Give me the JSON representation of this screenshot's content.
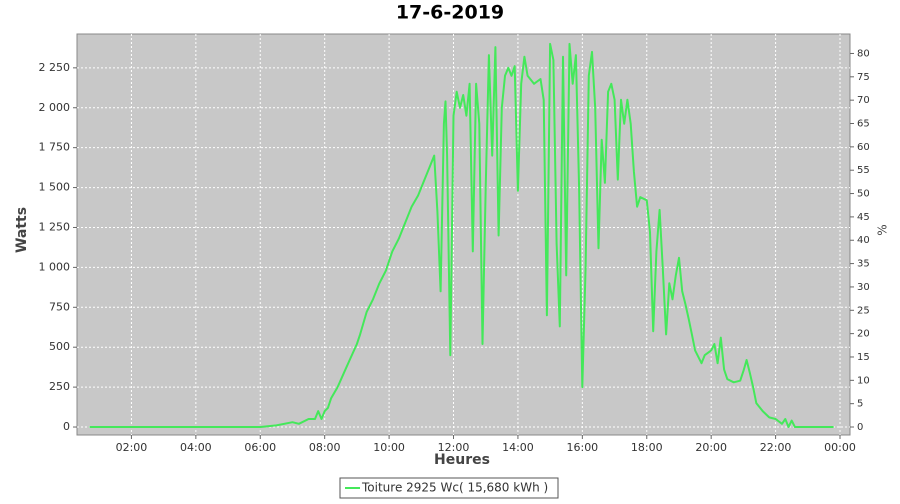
{
  "chart_data": {
    "type": "line",
    "title": "17-6-2019",
    "x_label": "Heures",
    "y_label": "Watts",
    "y2_label": "%",
    "x": [
      0.7,
      6.0,
      6.5,
      7.0,
      7.2,
      7.5,
      7.7,
      7.8,
      7.9,
      8.0,
      8.1,
      8.2,
      8.4,
      8.6,
      8.8,
      9.0,
      9.1,
      9.3,
      9.5,
      9.7,
      9.9,
      10.1,
      10.3,
      10.5,
      10.7,
      10.9,
      11.1,
      11.3,
      11.4,
      11.5,
      11.6,
      11.7,
      11.75,
      11.8,
      11.9,
      12.0,
      12.1,
      12.2,
      12.3,
      12.4,
      12.5,
      12.6,
      12.7,
      12.8,
      12.9,
      13.0,
      13.1,
      13.2,
      13.3,
      13.4,
      13.5,
      13.6,
      13.7,
      13.8,
      13.9,
      14.0,
      14.1,
      14.2,
      14.3,
      14.5,
      14.7,
      14.8,
      14.9,
      15.0,
      15.1,
      15.2,
      15.3,
      15.4,
      15.5,
      15.6,
      15.7,
      15.8,
      15.9,
      16.0,
      16.1,
      16.2,
      16.3,
      16.4,
      16.5,
      16.6,
      16.7,
      16.8,
      16.9,
      17.0,
      17.1,
      17.2,
      17.3,
      17.4,
      17.5,
      17.6,
      17.7,
      17.8,
      18.0,
      18.1,
      18.2,
      18.3,
      18.4,
      18.5,
      18.6,
      18.7,
      18.8,
      18.9,
      19.0,
      19.1,
      19.2,
      19.3,
      19.4,
      19.5,
      19.7,
      19.8,
      20.0,
      20.1,
      20.2,
      20.3,
      20.4,
      20.5,
      20.7,
      20.9,
      21.0,
      21.1,
      21.2,
      21.3,
      21.4,
      21.6,
      21.8,
      22.0,
      22.2,
      22.3,
      22.4,
      22.5,
      22.6,
      23.0,
      23.8
    ],
    "series": [
      {
        "name": "Toiture 2925 Wc( 15,680 kWh )",
        "color": "#44e85a",
        "values": [
          0,
          0,
          10,
          30,
          20,
          50,
          50,
          100,
          50,
          100,
          120,
          180,
          250,
          340,
          430,
          520,
          580,
          720,
          800,
          900,
          980,
          1100,
          1180,
          1280,
          1380,
          1450,
          1550,
          1650,
          1700,
          1350,
          850,
          1900,
          2040,
          1700,
          450,
          1950,
          2100,
          2000,
          2080,
          1950,
          2150,
          1100,
          2150,
          1900,
          520,
          1500,
          2330,
          1700,
          2380,
          1200,
          2000,
          2200,
          2250,
          2200,
          2260,
          1480,
          2150,
          2320,
          2200,
          2150,
          2180,
          2050,
          700,
          2400,
          2300,
          1150,
          630,
          2320,
          950,
          2400,
          2150,
          2330,
          1500,
          250,
          1000,
          2200,
          2350,
          2000,
          1120,
          1800,
          1530,
          2100,
          2150,
          2050,
          1550,
          2050,
          1900,
          2050,
          1900,
          1600,
          1380,
          1440,
          1420,
          1220,
          600,
          1100,
          1360,
          980,
          580,
          900,
          800,
          950,
          1060,
          850,
          770,
          680,
          580,
          480,
          400,
          450,
          480,
          520,
          400,
          560,
          360,
          300,
          280,
          290,
          350,
          420,
          340,
          250,
          150,
          100,
          60,
          50,
          20,
          50,
          0,
          40,
          0,
          0,
          0
        ]
      }
    ],
    "xlim": [
      0.31,
      24.31
    ],
    "xticks": [
      {
        "value": 2,
        "label": "02:00"
      },
      {
        "value": 4,
        "label": "04:00"
      },
      {
        "value": 6,
        "label": "06:00"
      },
      {
        "value": 8,
        "label": "08:00"
      },
      {
        "value": 10,
        "label": "10:00"
      },
      {
        "value": 12,
        "label": "12:00"
      },
      {
        "value": 14,
        "label": "14:00"
      },
      {
        "value": 16,
        "label": "16:00"
      },
      {
        "value": 18,
        "label": "18:00"
      },
      {
        "value": 20,
        "label": "20:00"
      },
      {
        "value": 22,
        "label": "22:00"
      },
      {
        "value": 24,
        "label": "00:00"
      }
    ],
    "ylim": [
      -50,
      2462
    ],
    "yticks": [
      0,
      250,
      500,
      750,
      {
        "value": 1000,
        "label": "1 000"
      },
      {
        "value": 1250,
        "label": "1 250"
      },
      {
        "value": 1500,
        "label": "1 500"
      },
      {
        "value": 1750,
        "label": "1 750"
      },
      {
        "value": 2000,
        "label": "2 000"
      },
      {
        "value": 2250,
        "label": "2 250"
      }
    ],
    "y2lim": [
      -1.71,
      84.17
    ],
    "y2ticks": [
      0,
      5,
      10,
      15,
      20,
      25,
      30,
      35,
      40,
      45,
      50,
      55,
      60,
      65,
      70,
      75,
      80
    ],
    "grid": true
  }
}
